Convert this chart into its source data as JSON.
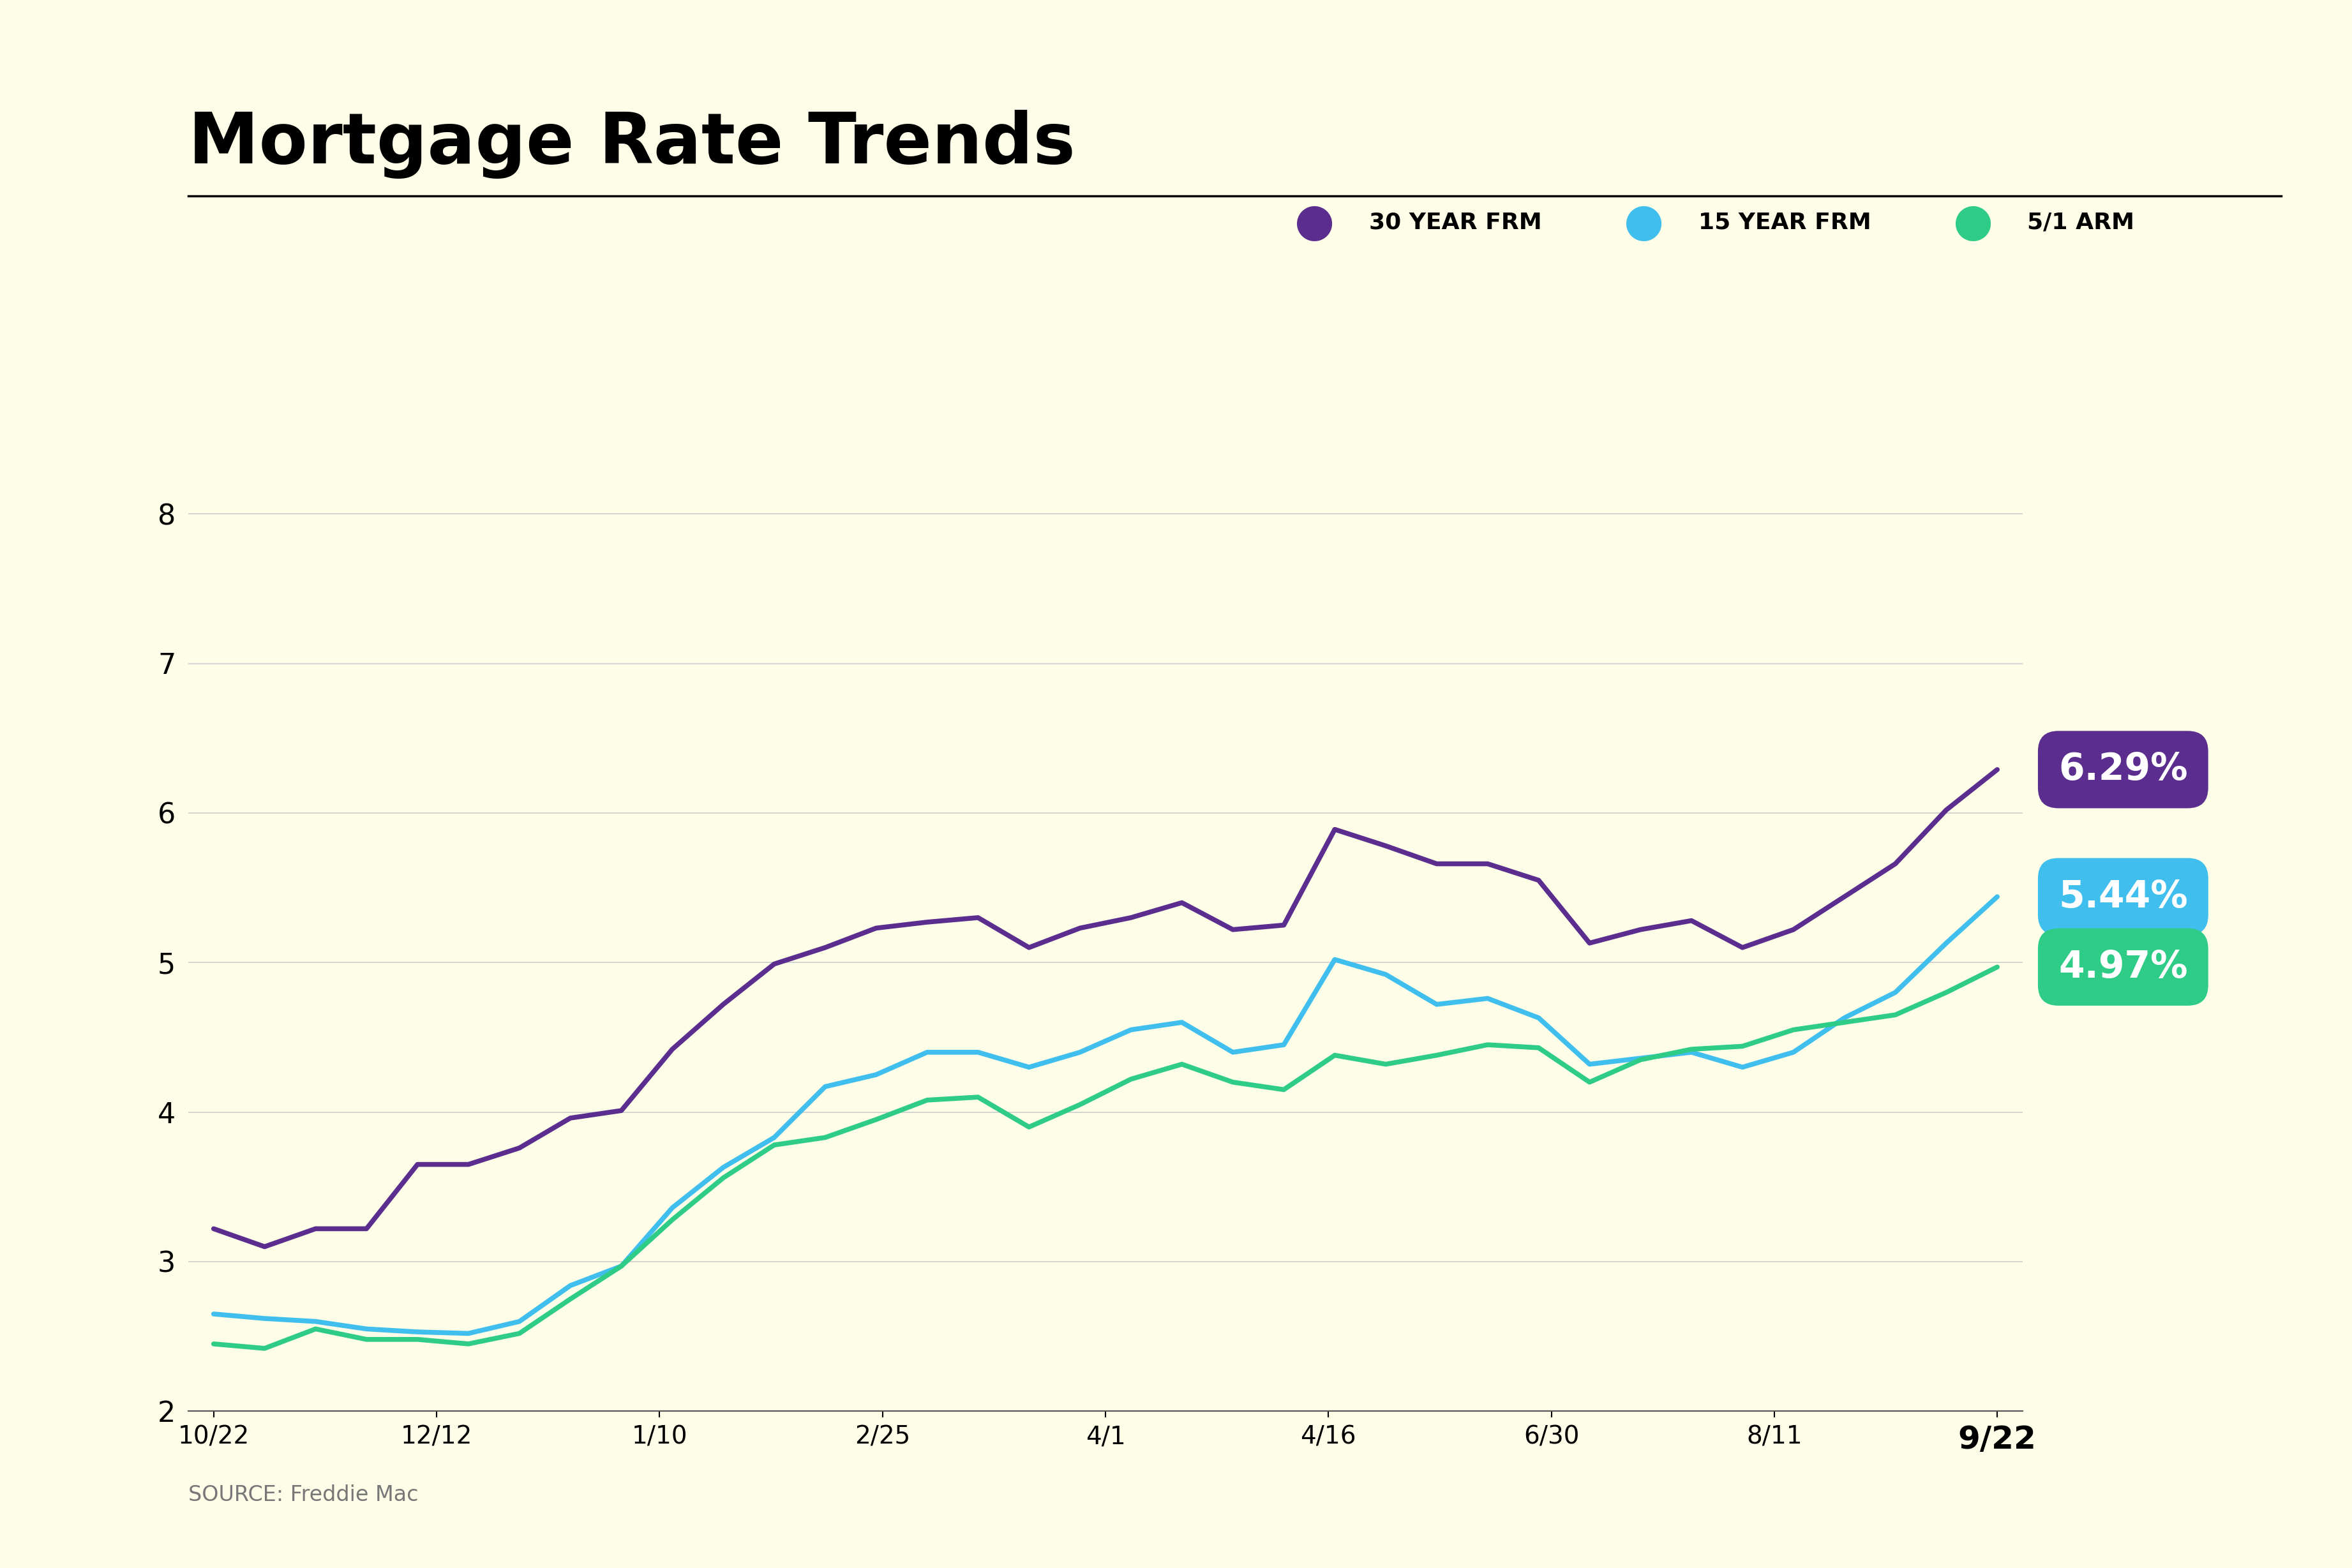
{
  "title": "Mortgage Rate Trends",
  "background_color": "#fdfde8",
  "source_text": "SOURCE: Freddie Mac",
  "x_labels": [
    "10/22",
    "12/12",
    "1/10",
    "2/25",
    "4/1",
    "4/16",
    "6/30",
    "8/11",
    "9/22"
  ],
  "ylim": [
    2.0,
    8.5
  ],
  "yticks": [
    2,
    3,
    4,
    5,
    6,
    7,
    8
  ],
  "series_30yr_color": "#5b2d8e",
  "series_15yr_color": "#40bfee",
  "series_arm_color": "#2ecc87",
  "series_30yr_label": "30 YEAR FRM",
  "series_15yr_label": "15 YEAR FRM",
  "series_arm_label": "5/1 ARM",
  "series_30yr_final": "6.29%",
  "series_15yr_final": "5.44%",
  "series_arm_final": "4.97%",
  "data_30yr": [
    3.22,
    3.1,
    3.22,
    3.22,
    3.65,
    3.65,
    3.76,
    3.96,
    4.01,
    4.42,
    4.72,
    4.99,
    5.1,
    5.23,
    5.27,
    5.3,
    5.1,
    5.23,
    5.3,
    5.4,
    5.22,
    5.25,
    5.89,
    5.78,
    5.66,
    5.66,
    5.55,
    5.13,
    5.22,
    5.28,
    5.1,
    5.22,
    5.44,
    5.66,
    6.02,
    6.29
  ],
  "data_15yr": [
    2.65,
    2.62,
    2.6,
    2.55,
    2.53,
    2.52,
    2.6,
    2.84,
    2.97,
    3.36,
    3.63,
    3.83,
    4.17,
    4.25,
    4.4,
    4.4,
    4.3,
    4.4,
    4.55,
    4.6,
    4.4,
    4.45,
    5.02,
    4.92,
    4.72,
    4.76,
    4.63,
    4.32,
    4.36,
    4.4,
    4.3,
    4.4,
    4.63,
    4.8,
    5.13,
    5.44
  ],
  "data_arm": [
    2.45,
    2.42,
    2.55,
    2.48,
    2.48,
    2.45,
    2.52,
    2.75,
    2.97,
    3.28,
    3.56,
    3.78,
    3.83,
    3.95,
    4.08,
    4.1,
    3.9,
    4.05,
    4.22,
    4.32,
    4.2,
    4.15,
    4.38,
    4.32,
    4.38,
    4.45,
    4.43,
    4.2,
    4.35,
    4.42,
    4.44,
    4.55,
    4.6,
    4.65,
    4.8,
    4.97
  ]
}
